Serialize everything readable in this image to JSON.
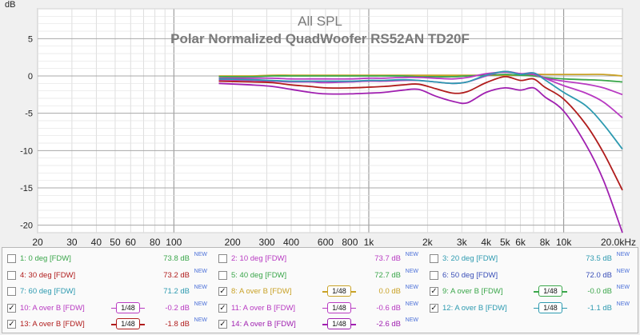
{
  "chart_data": {
    "type": "line",
    "title": "All SPL",
    "subtitle": "Polar Normalized QuadWoofer RS52AN TD20F",
    "ylabel": "dB",
    "xscale": "log",
    "xlim": [
      20,
      20000
    ],
    "ylim": [
      -21,
      9
    ],
    "grid": true,
    "x_ticks": [
      20,
      30,
      40,
      50,
      60,
      80,
      100,
      200,
      300,
      400,
      600,
      800,
      1000,
      2000,
      3000,
      4000,
      5000,
      6000,
      8000,
      10000,
      20000
    ],
    "x_tick_labels": [
      "20",
      "30",
      "40",
      "50",
      "60",
      "80",
      "100",
      "200",
      "300",
      "400",
      "600",
      "800",
      "1k",
      "2k",
      "3k",
      "4k",
      "5k",
      "6k",
      "8k",
      "10k",
      "20.0kHz"
    ],
    "y_ticks": [
      5,
      0,
      -5,
      -10,
      -15,
      -20
    ],
    "y_tick_labels": [
      "5",
      "0",
      "-5",
      "-10",
      "-15",
      "-20"
    ],
    "x": [
      170,
      250,
      320,
      400,
      500,
      600,
      800,
      1000,
      1200,
      1500,
      1800,
      2200,
      2700,
      3200,
      4000,
      5000,
      6000,
      7000,
      8000,
      10000,
      13000,
      16000,
      20000
    ],
    "series": [
      {
        "name": "8: A over B [FDW]",
        "color": "#c9a227",
        "values": [
          0.0,
          0.0,
          0.1,
          0.1,
          0.1,
          0.1,
          0.1,
          0.1,
          0.1,
          0.1,
          0.1,
          0.1,
          0.1,
          0.1,
          0.1,
          0.1,
          0.1,
          0.2,
          0.2,
          0.2,
          0.2,
          0.2,
          0.0
        ]
      },
      {
        "name": "9: A over B [FDW]",
        "color": "#3aa64a",
        "values": [
          -0.1,
          -0.1,
          0.0,
          0.0,
          0.0,
          0.0,
          0.0,
          0.0,
          0.0,
          0.0,
          -0.1,
          -0.1,
          -0.1,
          0.0,
          0.1,
          0.2,
          0.1,
          0.0,
          -0.2,
          -0.4,
          -0.5,
          -0.6,
          -0.8
        ]
      },
      {
        "name": "10: A over B [FDW]",
        "color": "#b83ac2",
        "values": [
          -0.3,
          -0.3,
          -0.3,
          -0.4,
          -0.4,
          -0.4,
          -0.4,
          -0.3,
          -0.3,
          -0.2,
          -0.2,
          -0.3,
          -0.4,
          -0.2,
          0.3,
          0.5,
          0.3,
          0.2,
          -0.3,
          -0.7,
          -1.1,
          -1.6,
          -2.5
        ]
      },
      {
        "name": "11: A over B [FDW]",
        "color": "#b83ac2",
        "values": [
          -0.5,
          -0.6,
          -0.7,
          -0.8,
          -0.8,
          -0.9,
          -0.8,
          -0.7,
          -0.7,
          -0.6,
          -0.6,
          -0.8,
          -1.0,
          -0.8,
          0.0,
          0.6,
          0.3,
          0.4,
          -0.3,
          -1.3,
          -2.3,
          -3.5,
          -5.6
        ]
      },
      {
        "name": "12: A over B [FDW]",
        "color": "#2d9ab0",
        "values": [
          -0.4,
          -0.5,
          -0.6,
          -0.7,
          -0.7,
          -0.7,
          -0.7,
          -0.6,
          -0.6,
          -0.5,
          -0.6,
          -0.8,
          -1.0,
          -0.8,
          0.1,
          0.6,
          0.2,
          0.4,
          -0.5,
          -2.2,
          -4.0,
          -6.5,
          -9.8
        ]
      },
      {
        "name": "13: A over B [FDW]",
        "color": "#b01c1c",
        "values": [
          -0.7,
          -0.8,
          -0.9,
          -1.2,
          -1.4,
          -1.6,
          -1.6,
          -1.5,
          -1.4,
          -1.2,
          -1.1,
          -1.7,
          -2.3,
          -2.1,
          -0.9,
          -0.1,
          -0.6,
          -0.4,
          -1.5,
          -3.1,
          -6.5,
          -10.3,
          -15.3
        ]
      },
      {
        "name": "14: A over B [FDW]",
        "color": "#a020b0",
        "values": [
          -1.0,
          -1.2,
          -1.4,
          -1.8,
          -2.2,
          -2.4,
          -2.4,
          -2.3,
          -2.2,
          -1.9,
          -1.8,
          -2.7,
          -3.4,
          -3.6,
          -2.2,
          -1.6,
          -1.9,
          -1.6,
          -2.8,
          -4.7,
          -9.2,
          -14.0,
          -21.0
        ]
      }
    ]
  },
  "legend": [
    {
      "label": "1: 0 deg [FDW]",
      "value": "73.8 dB",
      "new": "NEW",
      "checked": "",
      "color": "#3aa64a"
    },
    {
      "label": "2: 10 deg [FDW]",
      "value": "73.7 dB",
      "new": "NEW",
      "checked": "",
      "color": "#b83ac2"
    },
    {
      "label": "3: 20 deg [FDW]",
      "value": "73.5 dB",
      "new": "NEW",
      "checked": "",
      "color": "#2d9ab0"
    },
    {
      "label": "4: 30 deg [FDW]",
      "value": "73.2 dB",
      "new": "NEW",
      "checked": "",
      "color": "#b01c1c"
    },
    {
      "label": "5: 40 deg [FDW]",
      "value": "72.7 dB",
      "new": "NEW",
      "checked": "",
      "color": "#3aa64a"
    },
    {
      "label": "6: 50 deg [FDW]",
      "value": "72.0 dB",
      "new": "NEW",
      "checked": "",
      "color": "#3a4fb8"
    },
    {
      "label": "7: 60 deg [FDW]",
      "value": "71.2 dB",
      "new": "NEW",
      "checked": "",
      "color": "#2d9ab0"
    },
    {
      "label": "8: A over B [FDW]",
      "value": "0.0 dB",
      "new": "NEW",
      "checked": "✓",
      "color": "#c9a227",
      "smoothing": "1/48"
    },
    {
      "label": "9: A over B [FDW]",
      "value": "-0.0 dB",
      "new": "NEW",
      "checked": "✓",
      "color": "#3aa64a",
      "smoothing": "1/48"
    },
    {
      "label": "10: A over B [FDW]",
      "value": "-0.2 dB",
      "new": "NEW",
      "checked": "✓",
      "color": "#b83ac2",
      "smoothing": "1/48"
    },
    {
      "label": "11: A over B [FDW]",
      "value": "-0.6 dB",
      "new": "NEW",
      "checked": "✓",
      "color": "#b83ac2",
      "smoothing": "1/48"
    },
    {
      "label": "12: A over B [FDW]",
      "value": "-1.1 dB",
      "new": "NEW",
      "checked": "✓",
      "color": "#2d9ab0",
      "smoothing": "1/48"
    },
    {
      "label": "13: A over B [FDW]",
      "value": "-1.8 dB",
      "new": "NEW",
      "checked": "✓",
      "color": "#b01c1c",
      "smoothing": "1/48"
    },
    {
      "label": "14: A over B [FDW]",
      "value": "-2.6 dB",
      "new": "NEW",
      "checked": "✓",
      "color": "#a020b0",
      "smoothing": "1/48"
    }
  ]
}
